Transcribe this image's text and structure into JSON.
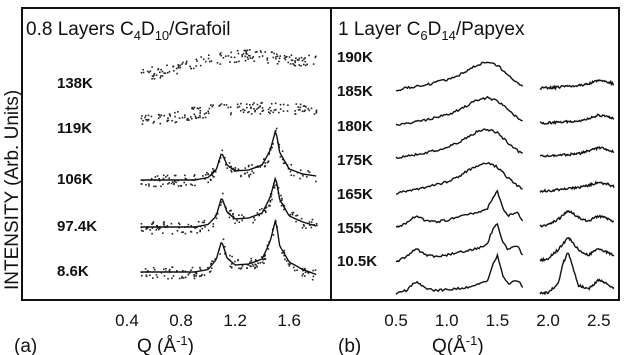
{
  "chart_data": [
    {
      "type": "scatter",
      "panel": "(a)",
      "title": "0.8 Layers C4D10/Grafoil",
      "title_parts": {
        "lead": "0.8 Layers C",
        "s1": "4",
        "mid": "D",
        "s2": "10",
        "tail": "/Grafoil"
      },
      "xlabel": "Q (Å⁻¹)",
      "xlabel_parts": {
        "lead": "Q (Å",
        "sup": "-1",
        "tail": ")"
      },
      "ylabel": "INTENSITY (Arb. Units)",
      "xlim": [
        0.4,
        1.85
      ],
      "xticks": [
        "0.4",
        "0.8",
        "1.2",
        "1.6"
      ],
      "fit_lines": true,
      "series": [
        {
          "name": "138K",
          "x": [
            0.5,
            0.6,
            0.7,
            0.8,
            0.9,
            1.0,
            1.1,
            1.2,
            1.3,
            1.4,
            1.5,
            1.6,
            1.7,
            1.8
          ],
          "y": [
            0.1,
            0.12,
            0.16,
            0.22,
            0.3,
            0.36,
            0.42,
            0.45,
            0.46,
            0.44,
            0.42,
            0.38,
            0.36,
            0.34
          ],
          "fit": false
        },
        {
          "name": "119K",
          "x": [
            0.5,
            0.6,
            0.7,
            0.8,
            0.9,
            1.0,
            1.1,
            1.2,
            1.3,
            1.4,
            1.5,
            1.6,
            1.7,
            1.8
          ],
          "y": [
            0.05,
            0.08,
            0.12,
            0.18,
            0.24,
            0.28,
            0.32,
            0.34,
            0.35,
            0.34,
            0.33,
            0.33,
            0.34,
            0.34
          ],
          "fit": false
        },
        {
          "name": "106K",
          "x": [
            0.5,
            0.6,
            0.7,
            0.8,
            0.9,
            1.0,
            1.06,
            1.1,
            1.14,
            1.2,
            1.3,
            1.4,
            1.46,
            1.5,
            1.53,
            1.6,
            1.7,
            1.8
          ],
          "y": [
            0.0,
            0.0,
            0.0,
            0.0,
            0.0,
            0.05,
            0.2,
            0.55,
            0.3,
            0.18,
            0.2,
            0.3,
            0.6,
            1.0,
            0.55,
            0.22,
            0.12,
            0.08
          ],
          "fit": true
        },
        {
          "name": "97.4K",
          "x": [
            0.5,
            0.6,
            0.7,
            0.8,
            0.9,
            1.0,
            1.06,
            1.1,
            1.14,
            1.2,
            1.3,
            1.4,
            1.46,
            1.5,
            1.53,
            1.6,
            1.7,
            1.8
          ],
          "y": [
            0.0,
            0.0,
            0.0,
            0.0,
            0.0,
            0.05,
            0.22,
            0.6,
            0.3,
            0.16,
            0.18,
            0.28,
            0.6,
            1.0,
            0.55,
            0.22,
            0.1,
            0.02
          ],
          "fit": true
        },
        {
          "name": "8.6K",
          "x": [
            0.5,
            0.6,
            0.7,
            0.8,
            0.9,
            1.0,
            1.06,
            1.1,
            1.14,
            1.2,
            1.3,
            1.4,
            1.46,
            1.5,
            1.53,
            1.6,
            1.7,
            1.8
          ],
          "y": [
            0.0,
            0.0,
            0.0,
            0.0,
            0.0,
            0.05,
            0.25,
            0.62,
            0.28,
            0.14,
            0.16,
            0.26,
            0.62,
            1.05,
            0.52,
            0.2,
            0.05,
            -0.05
          ],
          "fit": true
        }
      ]
    },
    {
      "type": "line",
      "panel": "(b)",
      "title": "1 Layer C6D14/Papyex",
      "title_parts": {
        "lead": "1 Layer C",
        "s1": "6",
        "mid": "D",
        "s2": "14",
        "tail": "/Papyex"
      },
      "xlabel": "Q(Å⁻¹)",
      "xlabel_parts": {
        "lead": "Q(Å",
        "sup": "-1",
        "tail": ")"
      },
      "xlim": [
        0.48,
        2.67
      ],
      "xticks": [
        "0.5",
        "1.0",
        "1.5",
        "2.0",
        "2.5"
      ],
      "segments": [
        [
          0.5,
          1.75
        ],
        [
          1.92,
          2.65
        ]
      ],
      "series": [
        {
          "name": "190K",
          "x": [
            0.5,
            0.6,
            0.7,
            0.8,
            0.9,
            1.0,
            1.1,
            1.2,
            1.3,
            1.4,
            1.5,
            1.6,
            1.7,
            1.75,
            1.92,
            2.0,
            2.1,
            2.2,
            2.3,
            2.4,
            2.5,
            2.6,
            2.65
          ],
          "y": [
            0.0,
            0.05,
            0.1,
            0.15,
            0.22,
            0.3,
            0.4,
            0.55,
            0.72,
            0.8,
            0.7,
            0.45,
            0.2,
            0.1,
            0.05,
            0.06,
            0.08,
            0.1,
            0.12,
            0.18,
            0.28,
            0.22,
            0.18
          ]
        },
        {
          "name": "185K",
          "x": [
            0.5,
            0.6,
            0.7,
            0.8,
            0.9,
            1.0,
            1.1,
            1.2,
            1.3,
            1.4,
            1.5,
            1.6,
            1.7,
            1.75,
            1.92,
            2.0,
            2.1,
            2.2,
            2.3,
            2.4,
            2.5,
            2.6,
            2.65
          ],
          "y": [
            0.0,
            0.05,
            0.1,
            0.15,
            0.22,
            0.3,
            0.4,
            0.55,
            0.72,
            0.78,
            0.68,
            0.45,
            0.2,
            0.1,
            0.05,
            0.06,
            0.08,
            0.1,
            0.12,
            0.18,
            0.28,
            0.22,
            0.18
          ]
        },
        {
          "name": "180K",
          "x": [
            0.5,
            0.6,
            0.7,
            0.8,
            0.9,
            1.0,
            1.1,
            1.2,
            1.3,
            1.4,
            1.5,
            1.6,
            1.7,
            1.75,
            1.92,
            2.0,
            2.1,
            2.2,
            2.3,
            2.4,
            2.5,
            2.6,
            2.65
          ],
          "y": [
            0.0,
            0.05,
            0.1,
            0.15,
            0.22,
            0.3,
            0.42,
            0.58,
            0.75,
            0.82,
            0.72,
            0.45,
            0.2,
            0.1,
            0.05,
            0.06,
            0.08,
            0.1,
            0.12,
            0.2,
            0.3,
            0.22,
            0.18
          ]
        },
        {
          "name": "175K",
          "x": [
            0.5,
            0.6,
            0.7,
            0.8,
            0.9,
            1.0,
            1.1,
            1.2,
            1.3,
            1.4,
            1.5,
            1.6,
            1.7,
            1.75,
            1.92,
            2.0,
            2.1,
            2.2,
            2.3,
            2.4,
            2.5,
            2.6,
            2.65
          ],
          "y": [
            0.0,
            0.05,
            0.1,
            0.16,
            0.24,
            0.32,
            0.45,
            0.62,
            0.78,
            0.85,
            0.74,
            0.45,
            0.2,
            0.1,
            0.05,
            0.06,
            0.1,
            0.14,
            0.15,
            0.22,
            0.32,
            0.24,
            0.18
          ]
        },
        {
          "name": "165K",
          "x": [
            0.5,
            0.6,
            0.7,
            0.8,
            0.9,
            1.0,
            1.1,
            1.2,
            1.3,
            1.4,
            1.45,
            1.5,
            1.55,
            1.6,
            1.7,
            1.75,
            1.92,
            2.0,
            2.1,
            2.2,
            2.3,
            2.4,
            2.5,
            2.6,
            2.65
          ],
          "y": [
            0.0,
            0.15,
            0.35,
            0.2,
            0.18,
            0.22,
            0.3,
            0.38,
            0.42,
            0.55,
            0.85,
            1.05,
            0.6,
            0.35,
            0.45,
            0.2,
            0.05,
            0.08,
            0.25,
            0.5,
            0.3,
            0.2,
            0.35,
            0.25,
            0.18
          ]
        },
        {
          "name": "155K",
          "x": [
            0.5,
            0.6,
            0.7,
            0.8,
            0.9,
            1.0,
            1.1,
            1.2,
            1.3,
            1.4,
            1.45,
            1.5,
            1.55,
            1.6,
            1.7,
            1.75,
            1.92,
            2.0,
            2.1,
            2.2,
            2.3,
            2.4,
            2.5,
            2.6,
            2.65
          ],
          "y": [
            0.0,
            0.15,
            0.38,
            0.2,
            0.16,
            0.2,
            0.26,
            0.32,
            0.38,
            0.52,
            0.9,
            1.1,
            0.6,
            0.35,
            0.45,
            0.2,
            0.05,
            0.1,
            0.35,
            0.7,
            0.35,
            0.2,
            0.38,
            0.25,
            0.18
          ]
        },
        {
          "name": "10.5K",
          "x": [
            0.5,
            0.6,
            0.7,
            0.8,
            0.9,
            1.0,
            1.1,
            1.2,
            1.3,
            1.4,
            1.45,
            1.5,
            1.55,
            1.6,
            1.7,
            1.75,
            1.92,
            2.0,
            2.1,
            2.15,
            2.2,
            2.25,
            2.3,
            2.4,
            2.5,
            2.6,
            2.65
          ],
          "y": [
            0.0,
            0.1,
            0.35,
            0.15,
            0.1,
            0.12,
            0.15,
            0.2,
            0.26,
            0.38,
            0.8,
            1.1,
            0.55,
            0.3,
            0.4,
            0.18,
            0.02,
            0.05,
            0.3,
            0.9,
            1.2,
            0.7,
            0.25,
            0.15,
            0.4,
            0.25,
            0.18
          ]
        }
      ]
    }
  ]
}
